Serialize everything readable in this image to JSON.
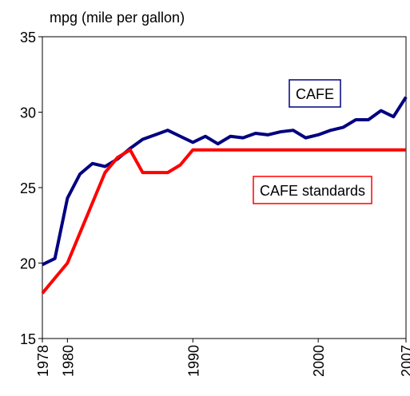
{
  "chart_data": {
    "type": "line",
    "ylabel": "mpg (mile per gallon)",
    "x": [
      1978,
      1979,
      1980,
      1981,
      1982,
      1983,
      1984,
      1985,
      1986,
      1987,
      1988,
      1989,
      1990,
      1991,
      1992,
      1993,
      1994,
      1995,
      1996,
      1997,
      1998,
      1999,
      2000,
      2001,
      2002,
      2003,
      2004,
      2005,
      2006,
      2007
    ],
    "series": [
      {
        "name": "CAFE",
        "color": "#000080",
        "values": [
          19.9,
          20.3,
          24.3,
          25.9,
          26.6,
          26.4,
          26.9,
          27.6,
          28.2,
          28.5,
          28.8,
          28.4,
          28.0,
          28.4,
          27.9,
          28.4,
          28.3,
          28.6,
          28.5,
          28.7,
          28.8,
          28.3,
          28.5,
          28.8,
          29.0,
          29.5,
          29.5,
          30.1,
          29.7,
          31.0
        ]
      },
      {
        "name": "CAFE standards",
        "color": "#ff0000",
        "values": [
          18.0,
          19.0,
          20.0,
          22.0,
          24.0,
          26.0,
          27.0,
          27.5,
          26.0,
          26.0,
          26.0,
          26.5,
          27.5,
          27.5,
          27.5,
          27.5,
          27.5,
          27.5,
          27.5,
          27.5,
          27.5,
          27.5,
          27.5,
          27.5,
          27.5,
          27.5,
          27.5,
          27.5,
          27.5,
          27.5
        ]
      }
    ],
    "xlim": [
      1978,
      2007
    ],
    "xticks": [
      1978,
      1980,
      1990,
      2000,
      2007
    ],
    "ylim": [
      15,
      35
    ],
    "yticks": [
      15,
      20,
      25,
      30,
      35
    ]
  }
}
